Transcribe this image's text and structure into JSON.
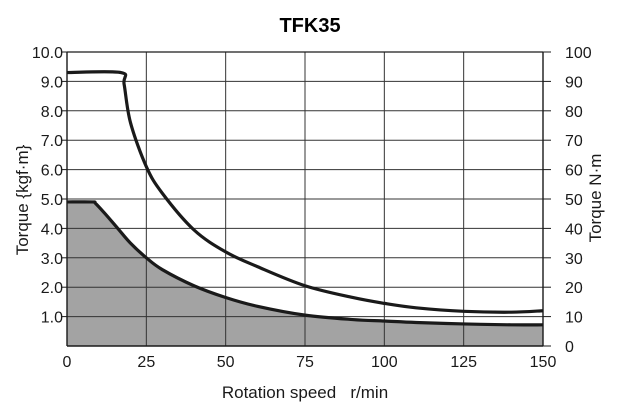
{
  "chart_data": {
    "type": "area",
    "title": "TFK35",
    "xlabel": "Rotation speed   r/min",
    "ylabel": "Torque {kgf·m}",
    "y2label": "Torque N·m",
    "xlim": [
      0,
      150
    ],
    "ylim": [
      0,
      10
    ],
    "y2lim": [
      0,
      100
    ],
    "x_ticks": [
      "0",
      "25",
      "50",
      "75",
      "100",
      "125",
      "150"
    ],
    "y_ticks": [
      "1.0",
      "2.0",
      "3.0",
      "4.0",
      "5.0",
      "6.0",
      "7.0",
      "8.0",
      "9.0",
      "10.0"
    ],
    "y2_ticks": [
      "0",
      "10",
      "20",
      "30",
      "40",
      "50",
      "60",
      "70",
      "80",
      "90",
      "100"
    ],
    "grid": true,
    "colors": {
      "fill": "#a3a3a3",
      "line": "#1a1a1a"
    },
    "series": [
      {
        "x": [
          0,
          17,
          18,
          20,
          25,
          30,
          40,
          50,
          60,
          75,
          90,
          100,
          110,
          125,
          140,
          150
        ],
        "y": [
          9.3,
          9.3,
          8.9,
          7.6,
          6.1,
          5.2,
          3.95,
          3.2,
          2.7,
          2.05,
          1.65,
          1.45,
          1.3,
          1.18,
          1.15,
          1.2
        ]
      },
      {
        "x": [
          0,
          8,
          9,
          12,
          16,
          20,
          25,
          30,
          40,
          50,
          60,
          75,
          90,
          100,
          110,
          125,
          140,
          150
        ],
        "y": [
          4.9,
          4.9,
          4.85,
          4.5,
          4.0,
          3.5,
          3.0,
          2.6,
          2.05,
          1.65,
          1.35,
          1.05,
          0.9,
          0.85,
          0.8,
          0.75,
          0.72,
          0.72
        ],
        "filled": true
      }
    ]
  }
}
